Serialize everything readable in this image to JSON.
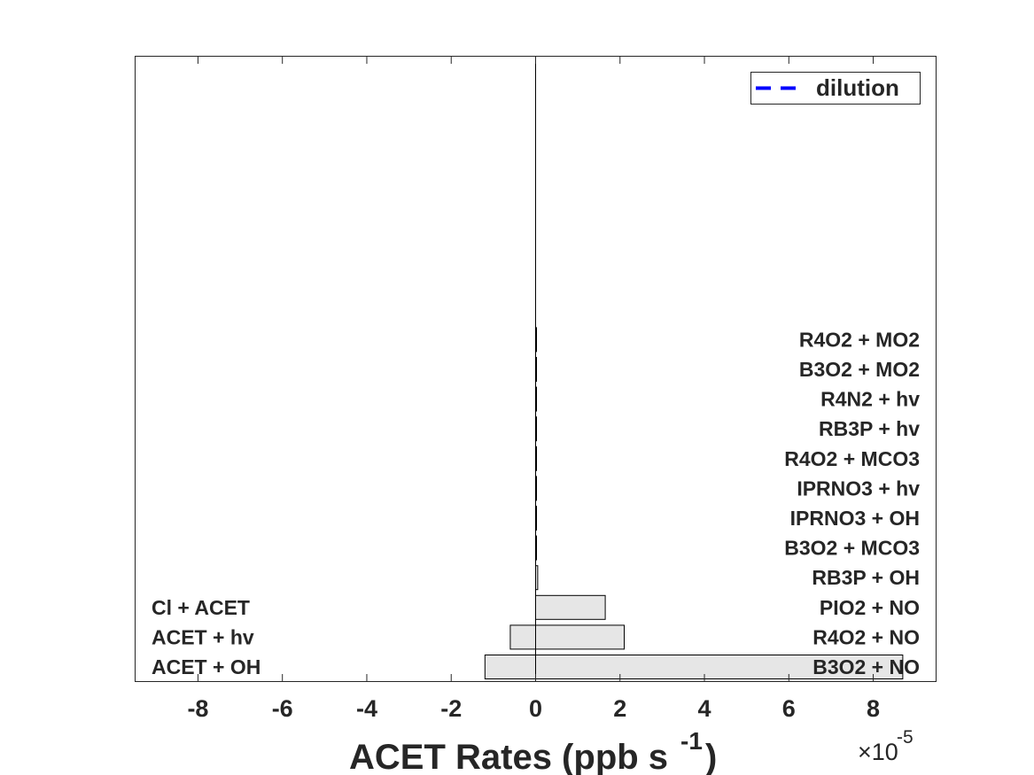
{
  "chart_data": {
    "type": "bar",
    "orientation": "horizontal",
    "stacked": true,
    "xlabel": "ACET Rates (ppb s",
    "xlabel_superscript": "-1",
    "xlabel_close": ")",
    "xlim": [
      -9.5e-05,
      9.5e-05
    ],
    "xticks": [
      -8e-05,
      -6e-05,
      -4e-05,
      -2e-05,
      0,
      2e-05,
      4e-05,
      6e-05,
      8e-05
    ],
    "xtick_labels": [
      "-8",
      "-6",
      "-4",
      "-2",
      "0",
      "2",
      "4",
      "6",
      "8"
    ],
    "x_exponent_prefix": "×10",
    "x_exponent": "-5",
    "grid": false,
    "bar_color": "#e6e6e6",
    "bar_edge_color": "#000000",
    "loss_series": {
      "labels": [
        "ACET + OH",
        "ACET + hv",
        "Cl + ACET"
      ],
      "values": [
        -1.2e-05,
        -6e-06,
        0
      ]
    },
    "production_series": {
      "labels": [
        "B3O2 + NO",
        "R4O2 + NO",
        "PIO2 + NO",
        "RB3P + OH",
        "B3O2 + MCO3",
        "IPRNO3 + OH",
        "IPRNO3 + hv",
        "R4O2 + MCO3",
        "RB3P + hv",
        "R4N2 + hv",
        "B3O2 + MO2",
        "R4O2 + MO2"
      ],
      "values": [
        8.7e-05,
        2.1e-05,
        1.65e-05,
        5e-07,
        2e-07,
        1e-07,
        1e-07,
        1e-07,
        5e-08,
        5e-08,
        3e-08,
        2e-08
      ]
    },
    "legend": {
      "position": "top-right",
      "entries": [
        {
          "name": "dilution",
          "color": "#0000ff",
          "style": "dashed"
        }
      ]
    }
  }
}
